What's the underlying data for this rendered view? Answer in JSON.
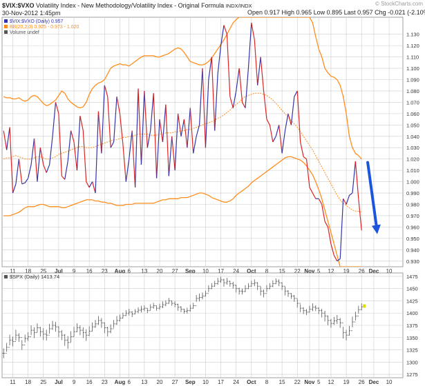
{
  "header": {
    "symbol": "$VIX:$VXO",
    "description": "Volatility Index - New Methodology/Volatility Index - Original Formula",
    "exchange": "INDX/INDX",
    "datetime": "30-Nov-2012 1:45pm",
    "watermark": "© StockCharts.com",
    "quote": "Open 0.917  High 0.965  Low 0.895  Last 0.957  Chg -0.021 (-2.10%)",
    "quote_arrow": "▼"
  },
  "colors": {
    "price_line": "#3333aa",
    "price_down": "#dd2222",
    "bollinger": "#ff8c1a",
    "arrow": "#1a55dd",
    "spx_bar": "#555555",
    "spx_last": "#dddd00",
    "grid": "#cccccc"
  },
  "chart_data": [
    {
      "type": "line",
      "title": "$VIX:$VXO",
      "legend": [
        {
          "text": "$VIX:$VXO (Daily) 0.957",
          "color": "#3333aa"
        },
        {
          "text": "BB(20,2.0) 0.925 - 0.973 - 1.020",
          "color": "#ff8c1a"
        },
        {
          "text": "Volume undef",
          "color": "#555555"
        }
      ],
      "legend_position": "top-left",
      "grid": true,
      "ylim": [
        0.925,
        1.145
      ],
      "y_ticks": [
        0.93,
        0.94,
        0.95,
        0.96,
        0.97,
        0.98,
        0.99,
        1.0,
        1.01,
        1.02,
        1.03,
        1.04,
        1.05,
        1.06,
        1.07,
        1.08,
        1.09,
        1.1,
        1.11,
        1.12,
        1.13
      ],
      "y_tick_labels": [
        "0.930",
        "0.940",
        "0.950",
        "0.960",
        "0.970",
        "0.980",
        "0.990",
        "1.000",
        "1.010",
        "1.020",
        "1.030",
        "1.040",
        "1.050",
        "1.060",
        "1.070",
        "1.080",
        "1.090",
        "1.100",
        "1.110",
        "1.120",
        "1.130"
      ],
      "x_labels": [
        {
          "i": 3,
          "label": "11"
        },
        {
          "i": 8,
          "label": "18"
        },
        {
          "i": 13,
          "label": "25"
        },
        {
          "i": 18,
          "label": "Jul"
        },
        {
          "i": 23,
          "label": "9"
        },
        {
          "i": 28,
          "label": "16"
        },
        {
          "i": 33,
          "label": "23"
        },
        {
          "i": 38,
          "label": "Aug"
        },
        {
          "i": 41,
          "label": "6"
        },
        {
          "i": 46,
          "label": "13"
        },
        {
          "i": 51,
          "label": "20"
        },
        {
          "i": 56,
          "label": "27"
        },
        {
          "i": 61,
          "label": "Sep"
        },
        {
          "i": 66,
          "label": "10"
        },
        {
          "i": 71,
          "label": "17"
        },
        {
          "i": 76,
          "label": "24"
        },
        {
          "i": 81,
          "label": "Oct"
        },
        {
          "i": 86,
          "label": "8"
        },
        {
          "i": 91,
          "label": "15"
        },
        {
          "i": 96,
          "label": "22"
        },
        {
          "i": 100,
          "label": "Nov"
        },
        {
          "i": 103,
          "label": "5"
        },
        {
          "i": 107,
          "label": "12"
        },
        {
          "i": 112,
          "label": "19"
        },
        {
          "i": 117,
          "label": "26"
        },
        {
          "i": 121,
          "label": "Dec"
        },
        {
          "i": 126,
          "label": "10"
        }
      ],
      "series": [
        {
          "name": "$VIX:$VXO (Daily)",
          "values": [
            1.045,
            1.028,
            1.048,
            0.99,
            0.998,
            1.02,
            0.998,
            0.999,
            1.003,
            1.015,
            1.038,
            1.0,
            1.03,
            1.015,
            1.008,
            1.015,
            1.04,
            1.07,
            1.06,
            1.005,
            1.002,
            1.018,
            1.045,
            1.035,
            1.01,
            1.058,
            1.045,
            1.0,
            0.995,
            1.0,
            0.99,
            1.062,
            1.025,
            1.085,
            1.075,
            1.03,
            1.035,
            1.075,
            1.06,
            1.033,
            1.0,
            1.02,
            1.045,
            0.995,
            1.082,
            1.015,
            1.08,
            1.03,
            1.045,
            1.078,
            1.003,
            1.055,
            1.035,
            1.068,
            1.005,
            1.04,
            1.01,
            1.06,
            1.04,
            1.055,
            1.03,
            1.065,
            1.025,
            1.04,
            1.05,
            1.1,
            1.03,
            1.09,
            1.11,
            1.045,
            1.095,
            1.12,
            1.138,
            1.13,
            1.075,
            1.065,
            1.08,
            1.1,
            1.07,
            1.065,
            1.1,
            1.14,
            1.125,
            1.085,
            1.11,
            1.08,
            1.055,
            1.05,
            1.035,
            1.04,
            1.05,
            1.025,
            1.045,
            1.06,
            1.05,
            1.075,
            1.08,
            1.035,
            1.022,
            1.02,
            0.995,
            0.99,
            0.985,
            0.985,
            0.98,
            0.965,
            0.96,
            0.945,
            0.935,
            0.93,
            0.932,
            0.985,
            0.98,
            0.988,
            0.99,
            1.018,
            0.985,
            0.957
          ],
          "x_start_index": 0
        }
      ],
      "bollinger_upper": [
        1.075,
        1.074,
        1.074,
        1.073,
        1.073,
        1.074,
        1.072,
        1.071,
        1.072,
        1.075,
        1.076,
        1.075,
        1.072,
        1.069,
        1.067,
        1.068,
        1.07,
        1.072,
        1.076,
        1.08,
        1.078,
        1.073,
        1.07,
        1.068,
        1.066,
        1.065,
        1.066,
        1.07,
        1.077,
        1.082,
        1.085,
        1.087,
        1.088,
        1.09,
        1.095,
        1.1,
        1.102,
        1.103,
        1.104,
        1.103,
        1.103,
        1.102,
        1.104,
        1.106,
        1.108,
        1.11,
        1.111,
        1.111,
        1.111,
        1.111,
        1.11,
        1.11,
        1.111,
        1.112,
        1.113,
        1.115,
        1.117,
        1.118,
        1.117,
        1.114,
        1.11,
        1.106,
        1.105,
        1.104,
        1.103,
        1.103,
        1.104,
        1.106,
        1.109,
        1.113,
        1.117,
        1.121,
        1.125,
        1.13,
        1.135,
        1.14,
        1.143,
        1.145,
        1.145,
        1.145,
        1.145,
        1.145,
        1.145,
        1.145,
        1.145,
        1.145,
        1.145,
        1.145,
        1.145,
        1.145,
        1.145,
        1.145,
        1.145,
        1.145,
        1.145,
        1.145,
        1.145,
        1.145,
        1.145,
        1.145,
        1.145,
        1.14,
        1.128,
        1.117,
        1.11,
        1.1,
        1.096,
        1.093,
        1.092,
        1.09,
        1.085,
        1.075,
        1.06,
        1.04,
        1.03,
        1.025,
        1.023,
        1.02
      ],
      "bollinger_middle": [
        1.02,
        1.021,
        1.021,
        1.022,
        1.023,
        1.022,
        1.021,
        1.02,
        1.02,
        1.02,
        1.021,
        1.022,
        1.022,
        1.021,
        1.02,
        1.02,
        1.021,
        1.022,
        1.024,
        1.025,
        1.026,
        1.027,
        1.028,
        1.029,
        1.03,
        1.031,
        1.031,
        1.03,
        1.03,
        1.03,
        1.031,
        1.032,
        1.033,
        1.034,
        1.035,
        1.036,
        1.037,
        1.037,
        1.038,
        1.039,
        1.039,
        1.04,
        1.04,
        1.041,
        1.042,
        1.042,
        1.042,
        1.042,
        1.041,
        1.041,
        1.041,
        1.042,
        1.042,
        1.043,
        1.043,
        1.043,
        1.044,
        1.044,
        1.045,
        1.045,
        1.046,
        1.046,
        1.047,
        1.048,
        1.049,
        1.05,
        1.051,
        1.052,
        1.053,
        1.054,
        1.056,
        1.057,
        1.059,
        1.061,
        1.063,
        1.066,
        1.068,
        1.07,
        1.073,
        1.075,
        1.076,
        1.077,
        1.078,
        1.078,
        1.078,
        1.077,
        1.076,
        1.074,
        1.072,
        1.069,
        1.066,
        1.063,
        1.06,
        1.057,
        1.054,
        1.051,
        1.048,
        1.044,
        1.04,
        1.036,
        1.032,
        1.028,
        1.023,
        1.018,
        1.013,
        1.008,
        1.003,
        0.998,
        0.993,
        0.988,
        0.984,
        0.981,
        0.979,
        0.977,
        0.975,
        0.974,
        0.974,
        0.973
      ],
      "bollinger_lower": [
        0.97,
        0.97,
        0.97,
        0.971,
        0.972,
        0.973,
        0.975,
        0.977,
        0.978,
        0.978,
        0.978,
        0.979,
        0.98,
        0.98,
        0.979,
        0.978,
        0.978,
        0.978,
        0.978,
        0.977,
        0.977,
        0.978,
        0.979,
        0.98,
        0.981,
        0.982,
        0.983,
        0.984,
        0.984,
        0.984,
        0.983,
        0.983,
        0.982,
        0.982,
        0.981,
        0.981,
        0.98,
        0.979,
        0.979,
        0.979,
        0.98,
        0.98,
        0.98,
        0.981,
        0.981,
        0.981,
        0.981,
        0.981,
        0.981,
        0.981,
        0.982,
        0.983,
        0.984,
        0.984,
        0.985,
        0.985,
        0.985,
        0.985,
        0.986,
        0.986,
        0.986,
        0.987,
        0.988,
        0.989,
        0.99,
        0.99,
        0.989,
        0.988,
        0.986,
        0.985,
        0.984,
        0.983,
        0.982,
        0.982,
        0.983,
        0.985,
        0.988,
        0.99,
        0.992,
        0.994,
        0.996,
        0.999,
        1.001,
        1.003,
        1.005,
        1.007,
        1.009,
        1.011,
        1.013,
        1.015,
        1.017,
        1.019,
        1.021,
        1.022,
        1.022,
        1.021,
        1.02,
        1.019,
        1.017,
        1.014,
        1.01,
        1.006,
        1.0,
        0.993,
        0.985,
        0.975,
        0.965,
        0.955,
        0.945,
        0.935,
        0.925,
        0.925,
        0.925,
        0.925,
        0.925,
        0.925,
        0.925,
        0.925
      ],
      "annotation": {
        "type": "arrow",
        "direction": "down",
        "from": {
          "i": 119,
          "y": 1.017
        },
        "to": {
          "i": 121,
          "y": 0.955
        }
      }
    },
    {
      "type": "bar",
      "title": "$SPX",
      "legend": [
        {
          "text": "$SPX (Daily) 1413.74",
          "color": "#555555"
        }
      ],
      "legend_position": "top-left",
      "grid": true,
      "ylim": [
        1268,
        1482
      ],
      "y_ticks": [
        1275,
        1300,
        1325,
        1350,
        1375,
        1400,
        1425,
        1450,
        1475
      ],
      "y_tick_labels": [
        "1275",
        "1300",
        "1325",
        "1350",
        "1375",
        "1400",
        "1425",
        "1450",
        "1475"
      ],
      "values": [
        1318,
        1330,
        1345,
        1342,
        1355,
        1350,
        1335,
        1348,
        1352,
        1365,
        1360,
        1370,
        1362,
        1357,
        1355,
        1368,
        1375,
        1372,
        1362,
        1355,
        1345,
        1340,
        1352,
        1362,
        1370,
        1365,
        1360,
        1355,
        1363,
        1372,
        1378,
        1385,
        1380,
        1370,
        1362,
        1368,
        1378,
        1385,
        1390,
        1395,
        1400,
        1402,
        1398,
        1403,
        1406,
        1408,
        1410,
        1405,
        1412,
        1415,
        1410,
        1413,
        1417,
        1420,
        1425,
        1420,
        1418,
        1412,
        1408,
        1404,
        1405,
        1410,
        1415,
        1430,
        1432,
        1435,
        1440,
        1450,
        1455,
        1460,
        1465,
        1468,
        1462,
        1465,
        1460,
        1457,
        1450,
        1445,
        1444,
        1450,
        1455,
        1460,
        1462,
        1455,
        1445,
        1440,
        1450,
        1455,
        1460,
        1465,
        1462,
        1455,
        1445,
        1440,
        1435,
        1430,
        1420,
        1410,
        1405,
        1402,
        1408,
        1412,
        1410,
        1405,
        1400,
        1394,
        1385,
        1379,
        1384,
        1387,
        1380,
        1360,
        1355,
        1364,
        1382,
        1394,
        1407,
        1413
      ],
      "last_value": 1413.74,
      "ranges": [
        20,
        18,
        22,
        20,
        22,
        18,
        20,
        16,
        18,
        20,
        22,
        18,
        20,
        24,
        22,
        20,
        18,
        20,
        22,
        20,
        24,
        26,
        22,
        20,
        18,
        20,
        22,
        24,
        20,
        18,
        16,
        18,
        20,
        22,
        20,
        18,
        16,
        18,
        14,
        12,
        12,
        14,
        12,
        10,
        12,
        14,
        12,
        10,
        12,
        12,
        10,
        12,
        14,
        12,
        12,
        10,
        12,
        14,
        12,
        10,
        12,
        14,
        12,
        14,
        16,
        14,
        12,
        14,
        12,
        12,
        14,
        12,
        16,
        14,
        12,
        14,
        16,
        14,
        12,
        14,
        12,
        12,
        14,
        16,
        18,
        16,
        14,
        12,
        14,
        12,
        14,
        16,
        18,
        14,
        12,
        14,
        18,
        16,
        14,
        12,
        14,
        16,
        12,
        14,
        18,
        22,
        20,
        18,
        16,
        18,
        20,
        24,
        22,
        20,
        22,
        18,
        16,
        14
      ]
    }
  ]
}
